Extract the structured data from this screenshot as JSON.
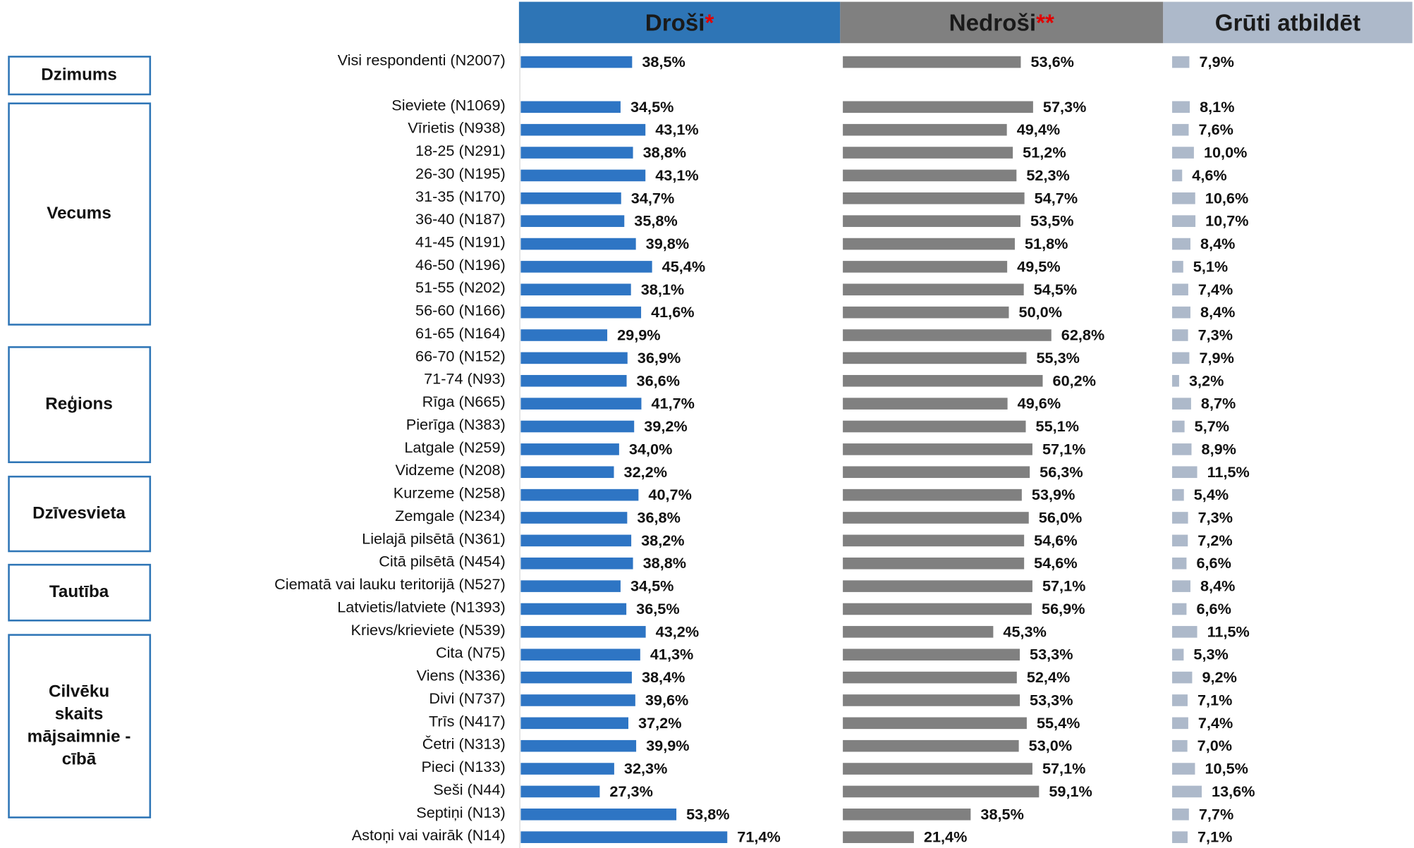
{
  "chart_data": {
    "type": "bar",
    "orientation": "horizontal",
    "categories": [
      "Visi respondenti (N2007)",
      "Sieviete (N1069)",
      "Vīrietis (N938)",
      "18-25 (N291)",
      "26-30 (N195)",
      "31-35 (N170)",
      "36-40 (N187)",
      "41-45 (N191)",
      "46-50 (N196)",
      "51-55 (N202)",
      "56-60 (N166)",
      "61-65 (N164)",
      "66-70 (N152)",
      "71-74 (N93)",
      "Rīga (N665)",
      "Pierīga (N383)",
      "Latgale (N259)",
      "Vidzeme (N208)",
      "Kurzeme (N258)",
      "Zemgale (N234)",
      "Lielajā pilsētā (N361)",
      "Citā pilsētā (N454)",
      "Ciematā vai lauku teritorijā (N527)",
      "Latvietis/latviete (N1393)",
      "Krievs/krieviete (N539)",
      "Cita (N75)",
      "Viens (N336)",
      "Divi (N737)",
      "Trīs (N417)",
      "Četri (N313)",
      "Pieci (N133)",
      "Seši (N44)",
      "Septiņi (N13)",
      "Astoņi vai vairāk (N14)"
    ],
    "series": [
      {
        "name": "Droši",
        "marker": "*",
        "color": "#2e75c4",
        "header_color": "#2e75b6",
        "values": [
          38.5,
          34.5,
          43.1,
          38.8,
          43.1,
          34.7,
          35.8,
          39.8,
          45.4,
          38.1,
          41.6,
          29.9,
          36.9,
          36.6,
          41.7,
          39.2,
          34.0,
          32.2,
          40.7,
          36.8,
          38.2,
          38.8,
          34.5,
          36.5,
          43.2,
          41.3,
          38.4,
          39.6,
          37.2,
          39.9,
          32.3,
          27.3,
          53.8,
          71.4
        ],
        "value_labels": [
          "38,5%",
          "34,5%",
          "43,1%",
          "38,8%",
          "43,1%",
          "34,7%",
          "35,8%",
          "39,8%",
          "45,4%",
          "38,1%",
          "41,6%",
          "29,9%",
          "36,9%",
          "36,6%",
          "41,7%",
          "39,2%",
          "34,0%",
          "32,2%",
          "40,7%",
          "36,8%",
          "38,2%",
          "38,8%",
          "34,5%",
          "36,5%",
          "43,2%",
          "41,3%",
          "38,4%",
          "39,6%",
          "37,2%",
          "39,9%",
          "32,3%",
          "27,3%",
          "53,8%",
          "71,4%"
        ]
      },
      {
        "name": "Nedroši",
        "marker": "**",
        "color": "#808080",
        "header_color": "#808080",
        "values": [
          53.6,
          57.3,
          49.4,
          51.2,
          52.3,
          54.7,
          53.5,
          51.8,
          49.5,
          54.5,
          50.0,
          62.8,
          55.3,
          60.2,
          49.6,
          55.1,
          57.1,
          56.3,
          53.9,
          56.0,
          54.6,
          54.6,
          57.1,
          56.9,
          45.3,
          53.3,
          52.4,
          53.3,
          55.4,
          53.0,
          57.1,
          59.1,
          38.5,
          21.4
        ],
        "value_labels": [
          "53,6%",
          "57,3%",
          "49,4%",
          "51,2%",
          "52,3%",
          "54,7%",
          "53,5%",
          "51,8%",
          "49,5%",
          "54,5%",
          "50,0%",
          "62,8%",
          "55,3%",
          "60,2%",
          "49,6%",
          "55,1%",
          "57,1%",
          "56,3%",
          "53,9%",
          "56,0%",
          "54,6%",
          "54,6%",
          "57,1%",
          "56,9%",
          "45,3%",
          "53,3%",
          "52,4%",
          "53,3%",
          "55,4%",
          "53,0%",
          "57,1%",
          "59,1%",
          "38,5%",
          "21,4%"
        ]
      },
      {
        "name": "Grūti atbildēt",
        "color": "#adb9ca",
        "header_color": "#adb9ca",
        "values": [
          7.9,
          8.1,
          7.6,
          10.0,
          4.6,
          10.6,
          10.7,
          8.4,
          5.1,
          7.4,
          8.4,
          7.3,
          7.9,
          3.2,
          8.7,
          5.7,
          8.9,
          11.5,
          5.4,
          7.3,
          7.2,
          6.6,
          8.4,
          6.6,
          11.5,
          5.3,
          9.2,
          7.1,
          7.4,
          7.0,
          10.5,
          13.6,
          7.7,
          7.1
        ],
        "value_labels": [
          "7,9%",
          "8,1%",
          "7,6%",
          "10,0%",
          "4,6%",
          "10,6%",
          "10,7%",
          "8,4%",
          "5,1%",
          "7,4%",
          "8,4%",
          "7,3%",
          "7,9%",
          "3,2%",
          "8,7%",
          "5,7%",
          "8,9%",
          "11,5%",
          "5,4%",
          "7,3%",
          "7,2%",
          "6,6%",
          "8,4%",
          "6,6%",
          "11,5%",
          "5,3%",
          "9,2%",
          "7,1%",
          "7,4%",
          "7,0%",
          "10,5%",
          "13,6%",
          "7,7%",
          "7,1%"
        ]
      }
    ],
    "groups": [
      {
        "lines": [
          "Dzimums"
        ]
      },
      {
        "lines": [
          "Vecums"
        ]
      },
      {
        "lines": [
          "Reģions"
        ]
      },
      {
        "lines": [
          "Dzīvesvieta"
        ]
      },
      {
        "lines": [
          "Tautība"
        ]
      },
      {
        "lines": [
          "Cilvēku",
          "skaits",
          "mājsaimnie -",
          "cībā"
        ]
      }
    ]
  }
}
